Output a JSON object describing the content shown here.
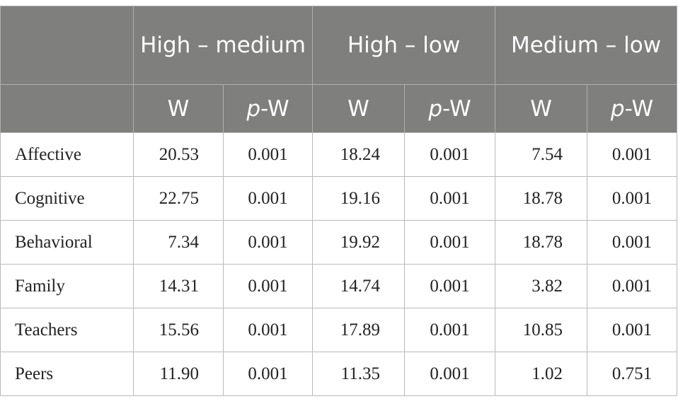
{
  "header": {
    "groups": [
      {
        "label": "High – medium"
      },
      {
        "label": "High – low"
      },
      {
        "label": "Medium – low"
      }
    ],
    "w_label": "W",
    "pw_prefix": "p",
    "pw_suffix": "-W"
  },
  "rows": [
    {
      "label": "Affective",
      "values": [
        "20.53",
        "0.001",
        "18.24",
        "0.001",
        "7.54",
        "0.001"
      ]
    },
    {
      "label": "Cognitive",
      "values": [
        "22.75",
        "0.001",
        "19.16",
        "0.001",
        "18.78",
        "0.001"
      ]
    },
    {
      "label": "Behavioral",
      "values": [
        "7.34",
        "0.001",
        "19.92",
        "0.001",
        "18.78",
        "0.001"
      ]
    },
    {
      "label": "Family",
      "values": [
        "14.31",
        "0.001",
        "14.74",
        "0.001",
        "3.82",
        "0.001"
      ]
    },
    {
      "label": "Teachers",
      "values": [
        "15.56",
        "0.001",
        "17.89",
        "0.001",
        "10.85",
        "0.001"
      ]
    },
    {
      "label": "Peers",
      "values": [
        "11.90",
        "0.001",
        "11.35",
        "0.001",
        "1.02",
        "0.751"
      ]
    }
  ]
}
